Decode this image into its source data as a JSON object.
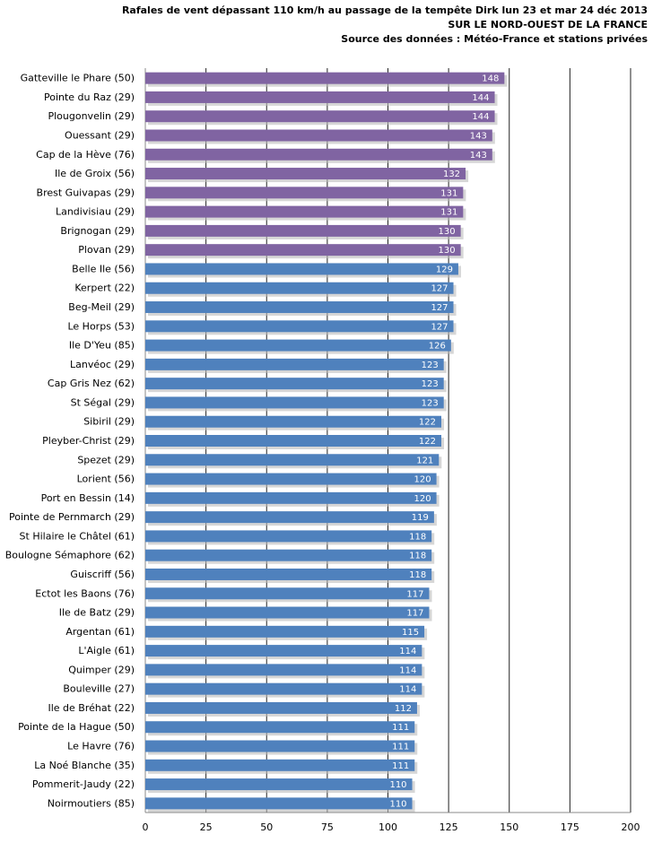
{
  "chart_data": {
    "type": "bar",
    "orientation": "horizontal",
    "title": "Rafales de vent dépassant 110 km/h au passage de la tempête Dirk lun 23 et mar 24 déc 2013",
    "subtitle": "SUR LE NORD-OUEST DE LA FRANCE",
    "source": "Source des données : Météo-France et stations privées",
    "xlim": [
      0,
      200
    ],
    "xticks": [
      0,
      25,
      50,
      75,
      100,
      125,
      150,
      175,
      200
    ],
    "grid": true,
    "colors": {
      "top10": "#8064A2",
      "others": "#4F81BD"
    },
    "categories": [
      "Gatteville le Phare (50)",
      "Pointe du Raz (29)",
      "Plougonvelin (29)",
      "Ouessant (29)",
      "Cap de la Hève (76)",
      "Ile de Groix (56)",
      "Brest Guivapas (29)",
      "Landivisiau (29)",
      "Brignogan (29)",
      "Plovan (29)",
      "Belle Ile (56)",
      "Kerpert (22)",
      "Beg-Meil (29)",
      "Le Horps (53)",
      "Ile D'Yeu (85)",
      "Lanvéoc (29)",
      "Cap Gris Nez (62)",
      "St Ségal (29)",
      "Sibiril (29)",
      "Pleyber-Christ (29)",
      "Spezet (29)",
      "Lorient (56)",
      "Port en Bessin (14)",
      "Pointe de Pernmarch (29)",
      "St Hilaire le Châtel (61)",
      "Boulogne Sémaphore (62)",
      "Guiscriff (56)",
      "Ectot les Baons (76)",
      "Ile de Batz (29)",
      "Argentan (61)",
      "L'Aigle (61)",
      "Quimper (29)",
      "Bouleville (27)",
      "Ile de Bréhat (22)",
      "Pointe de la Hague (50)",
      "Le Havre (76)",
      "La Noé Blanche (35)",
      "Pommerit-Jaudy (22)",
      "Noirmoutiers (85)"
    ],
    "values": [
      148,
      144,
      144,
      143,
      143,
      132,
      131,
      131,
      130,
      130,
      129,
      127,
      127,
      127,
      126,
      123,
      123,
      123,
      122,
      122,
      121,
      120,
      120,
      119,
      118,
      118,
      118,
      117,
      117,
      115,
      114,
      114,
      114,
      112,
      111,
      111,
      111,
      110,
      110
    ]
  }
}
